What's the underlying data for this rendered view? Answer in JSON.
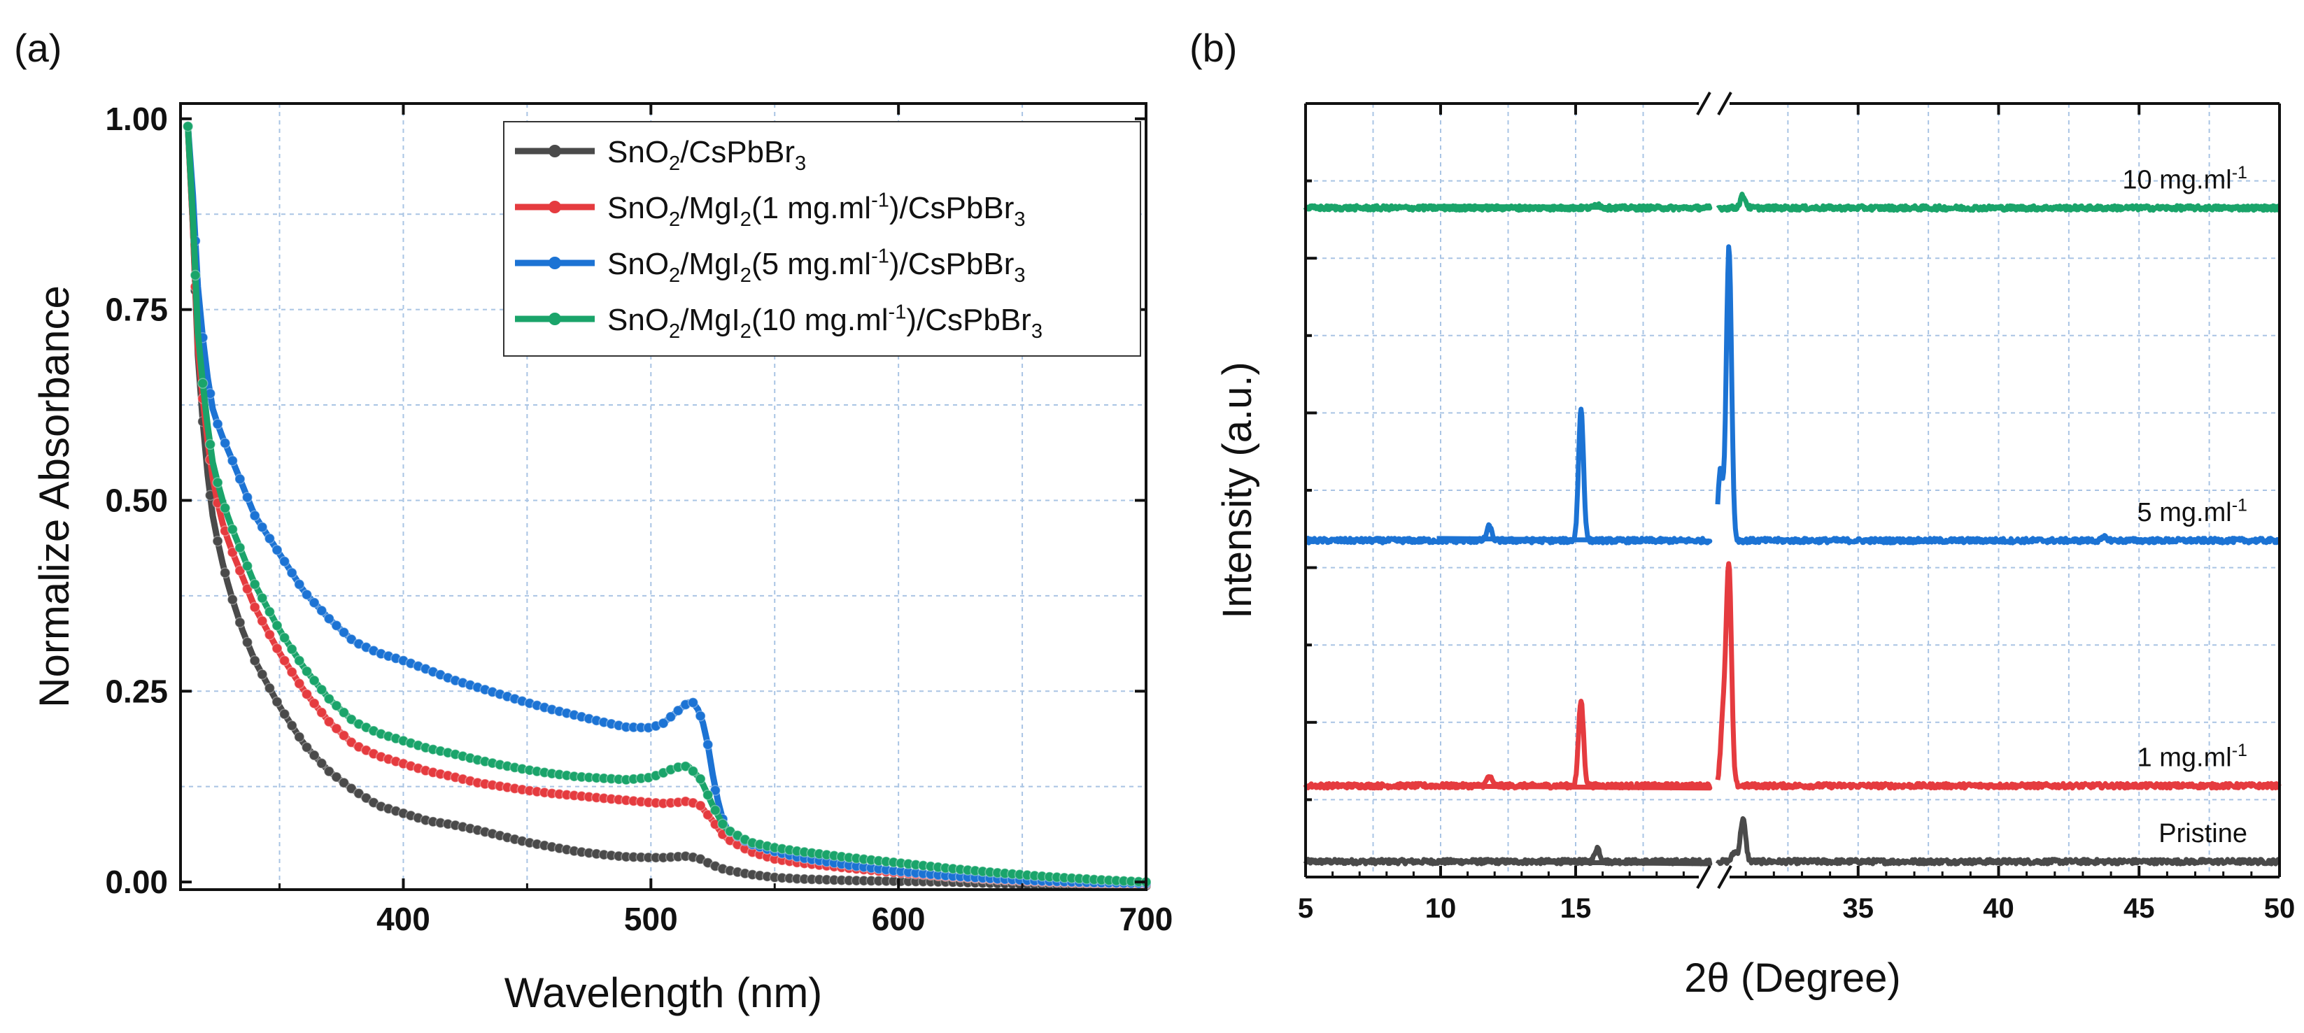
{
  "chart_data": [
    {
      "panel": "(a)",
      "type": "line",
      "xlabel": "Wavelength (nm)",
      "ylabel": "Normalize Absorbance",
      "xlim": [
        310,
        700
      ],
      "ylim": [
        -0.01,
        1.02
      ],
      "xticks": [
        400,
        500,
        600,
        700
      ],
      "yticks": [
        0.0,
        0.25,
        0.5,
        0.75,
        1.0
      ],
      "ytick_labels": [
        "0.00",
        "0.25",
        "0.50",
        "0.75",
        "1.00"
      ],
      "grid": true,
      "legend_position": "top-right",
      "series": [
        {
          "name": "SnO2/CsPbBr3",
          "legend_parts": [
            [
              "SnO",
              "n"
            ],
            [
              "2",
              "sub"
            ],
            [
              "/CsPbBr",
              "n"
            ],
            [
              "3",
              "sub"
            ]
          ],
          "color": "#4a4a4a",
          "x": [
            313,
            315,
            317,
            320,
            323,
            326,
            330,
            335,
            340,
            350,
            360,
            370,
            380,
            390,
            400,
            410,
            420,
            430,
            440,
            450,
            460,
            470,
            480,
            490,
            500,
            505,
            510,
            515,
            520,
            525,
            530,
            540,
            550,
            560,
            580,
            600,
            620,
            640,
            660,
            680,
            700
          ],
          "y": [
            0.99,
            0.86,
            0.69,
            0.56,
            0.48,
            0.43,
            0.38,
            0.33,
            0.29,
            0.23,
            0.18,
            0.145,
            0.12,
            0.1,
            0.09,
            0.08,
            0.075,
            0.068,
            0.06,
            0.052,
            0.046,
            0.04,
            0.036,
            0.033,
            0.032,
            0.032,
            0.033,
            0.034,
            0.03,
            0.022,
            0.016,
            0.01,
            0.006,
            0.004,
            0.002,
            0.001,
            0.0,
            -0.002,
            -0.004,
            -0.004,
            -0.005
          ]
        },
        {
          "name": "SnO2/MgI2(1 mg.ml-1)/CsPbBr3",
          "legend_parts": [
            [
              "SnO",
              "n"
            ],
            [
              "2",
              "sub"
            ],
            [
              "/MgI",
              "n"
            ],
            [
              "2",
              "sub"
            ],
            [
              "(1 mg.ml",
              "n"
            ],
            [
              "-1",
              "sup"
            ],
            [
              ")/CsPbBr",
              "n"
            ],
            [
              "3",
              "sub"
            ]
          ],
          "color": "#e53b3f",
          "x": [
            313,
            315,
            317,
            320,
            323,
            326,
            330,
            335,
            340,
            350,
            360,
            370,
            380,
            390,
            400,
            410,
            420,
            430,
            440,
            450,
            460,
            470,
            480,
            490,
            500,
            505,
            510,
            515,
            520,
            525,
            530,
            540,
            550,
            560,
            580,
            600,
            620,
            640,
            660,
            680,
            700
          ],
          "y": [
            0.99,
            0.86,
            0.7,
            0.6,
            0.53,
            0.48,
            0.44,
            0.4,
            0.36,
            0.3,
            0.25,
            0.21,
            0.18,
            0.165,
            0.155,
            0.145,
            0.138,
            0.13,
            0.125,
            0.12,
            0.116,
            0.113,
            0.11,
            0.107,
            0.104,
            0.103,
            0.104,
            0.106,
            0.1,
            0.08,
            0.058,
            0.04,
            0.03,
            0.025,
            0.018,
            0.012,
            0.007,
            0.003,
            0.0,
            -0.002,
            -0.003
          ]
        },
        {
          "name": "SnO2/MgI2(5 mg.ml-1)/CsPbBr3",
          "legend_parts": [
            [
              "SnO",
              "n"
            ],
            [
              "2",
              "sub"
            ],
            [
              "/MgI",
              "n"
            ],
            [
              "2",
              "sub"
            ],
            [
              "(5 mg.ml",
              "n"
            ],
            [
              "-1",
              "sup"
            ],
            [
              ")/CsPbBr",
              "n"
            ],
            [
              "3",
              "sub"
            ]
          ],
          "color": "#1c73d4",
          "x": [
            313,
            315,
            317,
            320,
            323,
            326,
            330,
            335,
            340,
            350,
            360,
            370,
            380,
            390,
            400,
            410,
            420,
            430,
            440,
            450,
            460,
            470,
            480,
            490,
            500,
            505,
            510,
            515,
            518,
            522,
            526,
            530,
            540,
            550,
            560,
            580,
            600,
            620,
            640,
            660,
            680,
            700
          ],
          "y": [
            0.99,
            0.9,
            0.78,
            0.68,
            0.62,
            0.59,
            0.56,
            0.52,
            0.48,
            0.43,
            0.38,
            0.345,
            0.315,
            0.3,
            0.29,
            0.278,
            0.265,
            0.255,
            0.245,
            0.235,
            0.226,
            0.218,
            0.21,
            0.203,
            0.202,
            0.208,
            0.222,
            0.235,
            0.235,
            0.2,
            0.12,
            0.07,
            0.05,
            0.04,
            0.032,
            0.022,
            0.014,
            0.008,
            0.004,
            0.001,
            -0.001,
            -0.002
          ]
        },
        {
          "name": "SnO2/MgI2(10 mg.ml-1)/CsPbBr3",
          "legend_parts": [
            [
              "SnO",
              "n"
            ],
            [
              "2",
              "sub"
            ],
            [
              "/MgI",
              "n"
            ],
            [
              "2",
              "sub"
            ],
            [
              "(10 mg.ml",
              "n"
            ],
            [
              "-1",
              "sup"
            ],
            [
              ")/CsPbBr",
              "n"
            ],
            [
              "3",
              "sub"
            ]
          ],
          "color": "#1aa46a",
          "x": [
            313,
            315,
            317,
            320,
            323,
            326,
            330,
            335,
            340,
            350,
            360,
            370,
            380,
            390,
            400,
            410,
            420,
            430,
            440,
            450,
            460,
            470,
            480,
            490,
            500,
            505,
            510,
            515,
            520,
            525,
            530,
            540,
            550,
            560,
            580,
            600,
            620,
            640,
            660,
            680,
            700
          ],
          "y": [
            0.99,
            0.87,
            0.72,
            0.62,
            0.55,
            0.51,
            0.47,
            0.43,
            0.39,
            0.33,
            0.28,
            0.24,
            0.21,
            0.195,
            0.185,
            0.175,
            0.168,
            0.16,
            0.153,
            0.147,
            0.142,
            0.138,
            0.136,
            0.134,
            0.137,
            0.143,
            0.15,
            0.152,
            0.135,
            0.1,
            0.07,
            0.052,
            0.045,
            0.04,
            0.032,
            0.025,
            0.018,
            0.012,
            0.007,
            0.003,
            0.0
          ]
        }
      ]
    },
    {
      "panel": "(b)",
      "type": "line",
      "xlabel": "2θ (Degree)",
      "ylabel": "Intensity (a.u.)",
      "x_axis_break": [
        20,
        30
      ],
      "xlim": [
        5,
        50
      ],
      "xticks": [
        5,
        10,
        15,
        35,
        40,
        45,
        50
      ],
      "ylim": [
        0,
        1
      ],
      "y_tick_labels_shown": false,
      "grid": true,
      "series": [
        {
          "name": "Pristine",
          "label": "Pristine",
          "color": "#4a4a4a",
          "baseline": 0.02,
          "peaks": [
            [
              15.8,
              0.018
            ],
            [
              30.6,
              0.012
            ],
            [
              30.9,
              0.055
            ]
          ]
        },
        {
          "name": "1 mg.ml-1",
          "label_parts": [
            [
              "1 mg.ml",
              "n"
            ],
            [
              "-1",
              "sup"
            ]
          ],
          "color": "#e53b3f",
          "baseline": 0.118,
          "peaks": [
            [
              11.8,
              0.012
            ],
            [
              15.2,
              0.11
            ],
            [
              30.2,
              0.09
            ],
            [
              30.4,
              0.28
            ]
          ]
        },
        {
          "name": "5 mg.ml-1",
          "label_parts": [
            [
              "5 mg.ml",
              "n"
            ],
            [
              "-1",
              "sup"
            ]
          ],
          "color": "#1c73d4",
          "baseline": 0.435,
          "peaks": [
            [
              11.8,
              0.018
            ],
            [
              15.2,
              0.17
            ],
            [
              30.1,
              0.09
            ],
            [
              30.4,
              0.38
            ],
            [
              43.8,
              0.004
            ]
          ]
        },
        {
          "name": "10 mg.ml-1",
          "label_parts": [
            [
              "10 mg.ml",
              "n"
            ],
            [
              "-1",
              "sup"
            ]
          ],
          "color": "#1aa46a",
          "baseline": 0.865,
          "peaks": [
            [
              15.8,
              0.006
            ],
            [
              30.9,
              0.016
            ]
          ]
        }
      ]
    }
  ]
}
